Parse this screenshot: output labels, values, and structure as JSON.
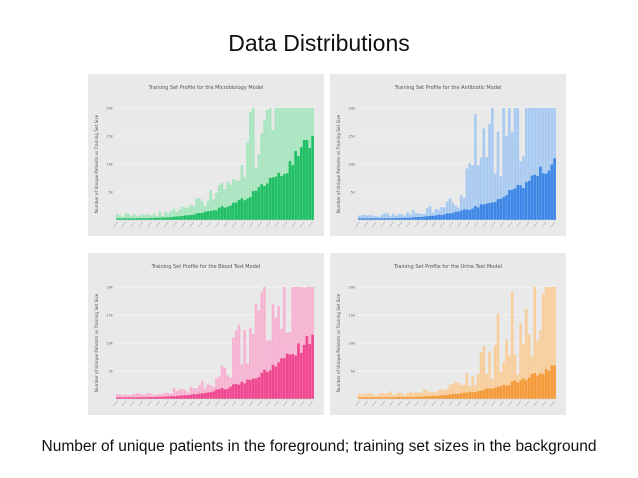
{
  "slide": {
    "title": "Data Distributions",
    "caption": "Number of unique patients in the foreground; training set sizes in the background"
  },
  "chart_data": [
    {
      "type": "bar",
      "title": "Training Set Profile for the Microbiology Model",
      "ylabel": "Number of Unique Patients vs Training Set Size",
      "ylim": [
        0,
        20000
      ],
      "yticks": [
        "5k",
        "10k",
        "15k",
        "20k"
      ],
      "grid": true,
      "colors": {
        "foreground": "#1fbf63",
        "background": "#a8e6bf"
      },
      "n_bars": 70,
      "series": [
        {
          "name": "",
          "role": "background",
          "end_value": 20000
        },
        {
          "name": "",
          "role": "foreground",
          "end_value": 15000
        }
      ]
    },
    {
      "type": "bar",
      "title": "Training Set Profile for the Antibiotic Model",
      "ylabel": "Number of Unique Patients vs Training Set Size",
      "ylim": [
        0,
        20000
      ],
      "yticks": [
        "5k",
        "10k",
        "15k",
        "20k"
      ],
      "grid": true,
      "colors": {
        "foreground": "#3d86e6",
        "background": "#a9cbf2"
      },
      "n_bars": 70,
      "series": [
        {
          "name": "",
          "role": "background",
          "end_value": 20000
        },
        {
          "name": "",
          "role": "foreground",
          "end_value": 11000
        }
      ]
    },
    {
      "type": "bar",
      "title": "Training Set Profile for the Blood Test Model",
      "ylabel": "Number of Unique Patients vs Training Set Size",
      "ylim": [
        0,
        20000
      ],
      "yticks": [
        "5k",
        "10k",
        "15k",
        "20k"
      ],
      "grid": true,
      "colors": {
        "foreground": "#f0468f",
        "background": "#f6b4d2"
      },
      "n_bars": 70,
      "series": [
        {
          "name": "",
          "role": "background",
          "end_value": 20000
        },
        {
          "name": "",
          "role": "foreground",
          "end_value": 11500
        }
      ]
    },
    {
      "type": "bar",
      "title": "Training Set Profile for the Urine Test Model",
      "ylabel": "Number of Unique Patients vs Training Set Size",
      "ylim": [
        0,
        20000
      ],
      "yticks": [
        "5k",
        "10k",
        "15k",
        "20k"
      ],
      "grid": true,
      "colors": {
        "foreground": "#f59a3a",
        "background": "#f8cf9c"
      },
      "n_bars": 70,
      "series": [
        {
          "name": "",
          "role": "background",
          "end_value": 20000
        },
        {
          "name": "",
          "role": "foreground",
          "end_value": 6000
        }
      ]
    }
  ]
}
